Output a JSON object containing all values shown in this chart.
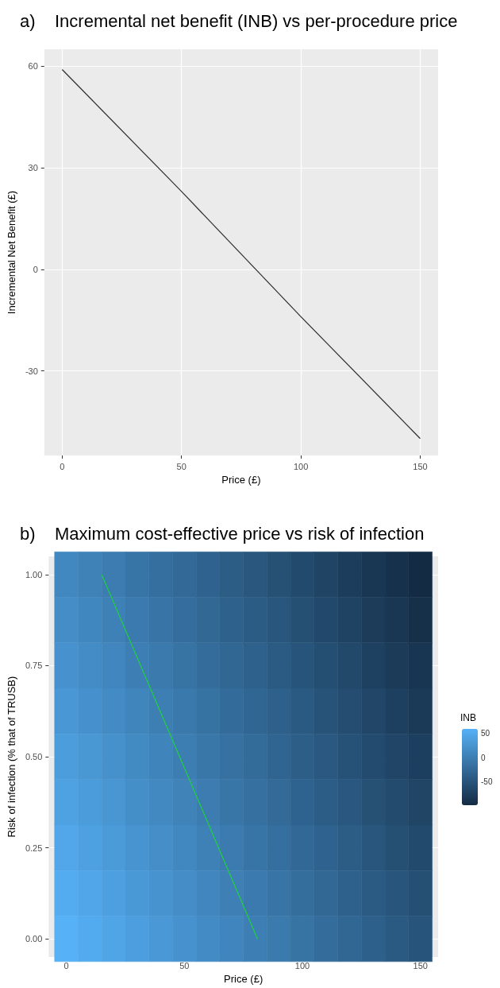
{
  "chart_data": [
    {
      "type": "line",
      "title": "a)    Incremental net benefit (INB) vs per-procedure price",
      "xlabel": "Price (£)",
      "ylabel": "Incremental Net Benefit (£)",
      "x": [
        0,
        50,
        100,
        150
      ],
      "values": [
        59,
        23,
        -14,
        -50
      ],
      "color": "#333333",
      "xlim": [
        -7.5,
        157.5
      ],
      "xticks": [
        0,
        50,
        100,
        150
      ],
      "ylim": [
        -55,
        65
      ],
      "yticks": [
        -30,
        0,
        30,
        60
      ],
      "grid": true,
      "marker": "none"
    },
    {
      "type": "heatmap",
      "title": "b)    Maximum cost-effective price vs risk of infection",
      "xlabel": "Price (£)",
      "ylabel": "Risk of infection (% that of TRUSB)",
      "clabel": "INB",
      "x": [
        0,
        10,
        20,
        30,
        40,
        50,
        60,
        70,
        80,
        90,
        100,
        110,
        120,
        130,
        140,
        150
      ],
      "y": [
        1,
        0.875,
        0.75,
        0.625,
        0.5,
        0.375,
        0.25,
        0.125,
        0
      ],
      "xlim": [
        -7.5,
        157.5
      ],
      "xticks": [
        0,
        50,
        100,
        150
      ],
      "ylim": [
        -0.05,
        1.05
      ],
      "yticks": [
        {
          "value": 0,
          "label": "0.00"
        },
        {
          "value": 0.25,
          "label": "0.25"
        },
        {
          "value": 0.5,
          "label": "0.50"
        },
        {
          "value": 0.75,
          "label": "0.75"
        },
        {
          "value": 1,
          "label": "1.00"
        }
      ],
      "cells": [
        [
          11,
          4,
          -3,
          -11,
          -18,
          -25,
          -33,
          -40,
          -47,
          -54,
          -62,
          -69,
          -76,
          -84,
          -91,
          -98
        ],
        [
          17,
          10,
          3,
          -5,
          -12,
          -19,
          -27,
          -34,
          -41,
          -48,
          -56,
          -63,
          -70,
          -78,
          -85,
          -92
        ],
        [
          23,
          16,
          9,
          1,
          -6,
          -13,
          -21,
          -28,
          -35,
          -42,
          -50,
          -57,
          -64,
          -72,
          -79,
          -86
        ],
        [
          29,
          22,
          15,
          7,
          0,
          -7,
          -15,
          -22,
          -29,
          -36,
          -44,
          -51,
          -58,
          -66,
          -73,
          -80
        ],
        [
          35,
          28,
          21,
          13,
          6,
          -1,
          -9,
          -16,
          -23,
          -30,
          -38,
          -45,
          -52,
          -60,
          -67,
          -74
        ],
        [
          41,
          34,
          27,
          19,
          12,
          5,
          -3,
          -10,
          -17,
          -24,
          -32,
          -39,
          -46,
          -54,
          -61,
          -68
        ],
        [
          47,
          40,
          33,
          25,
          18,
          11,
          3,
          -4,
          -11,
          -18,
          -26,
          -33,
          -40,
          -48,
          -55,
          -62
        ],
        [
          53,
          46,
          39,
          31,
          24,
          17,
          9,
          2,
          -5,
          -12,
          -20,
          -27,
          -34,
          -42,
          -49,
          -56
        ],
        [
          59,
          52,
          45,
          37,
          30,
          23,
          15,
          8,
          1,
          -6,
          -14,
          -21,
          -28,
          -36,
          -43,
          -50
        ]
      ],
      "clim": [
        -98,
        59
      ],
      "cticks": [
        -50,
        0,
        50
      ],
      "grid": true,
      "series": [
        {
          "type": "line",
          "x": [
            15,
            81
          ],
          "values": [
            1,
            0
          ],
          "color": "#22cc44"
        }
      ]
    }
  ]
}
